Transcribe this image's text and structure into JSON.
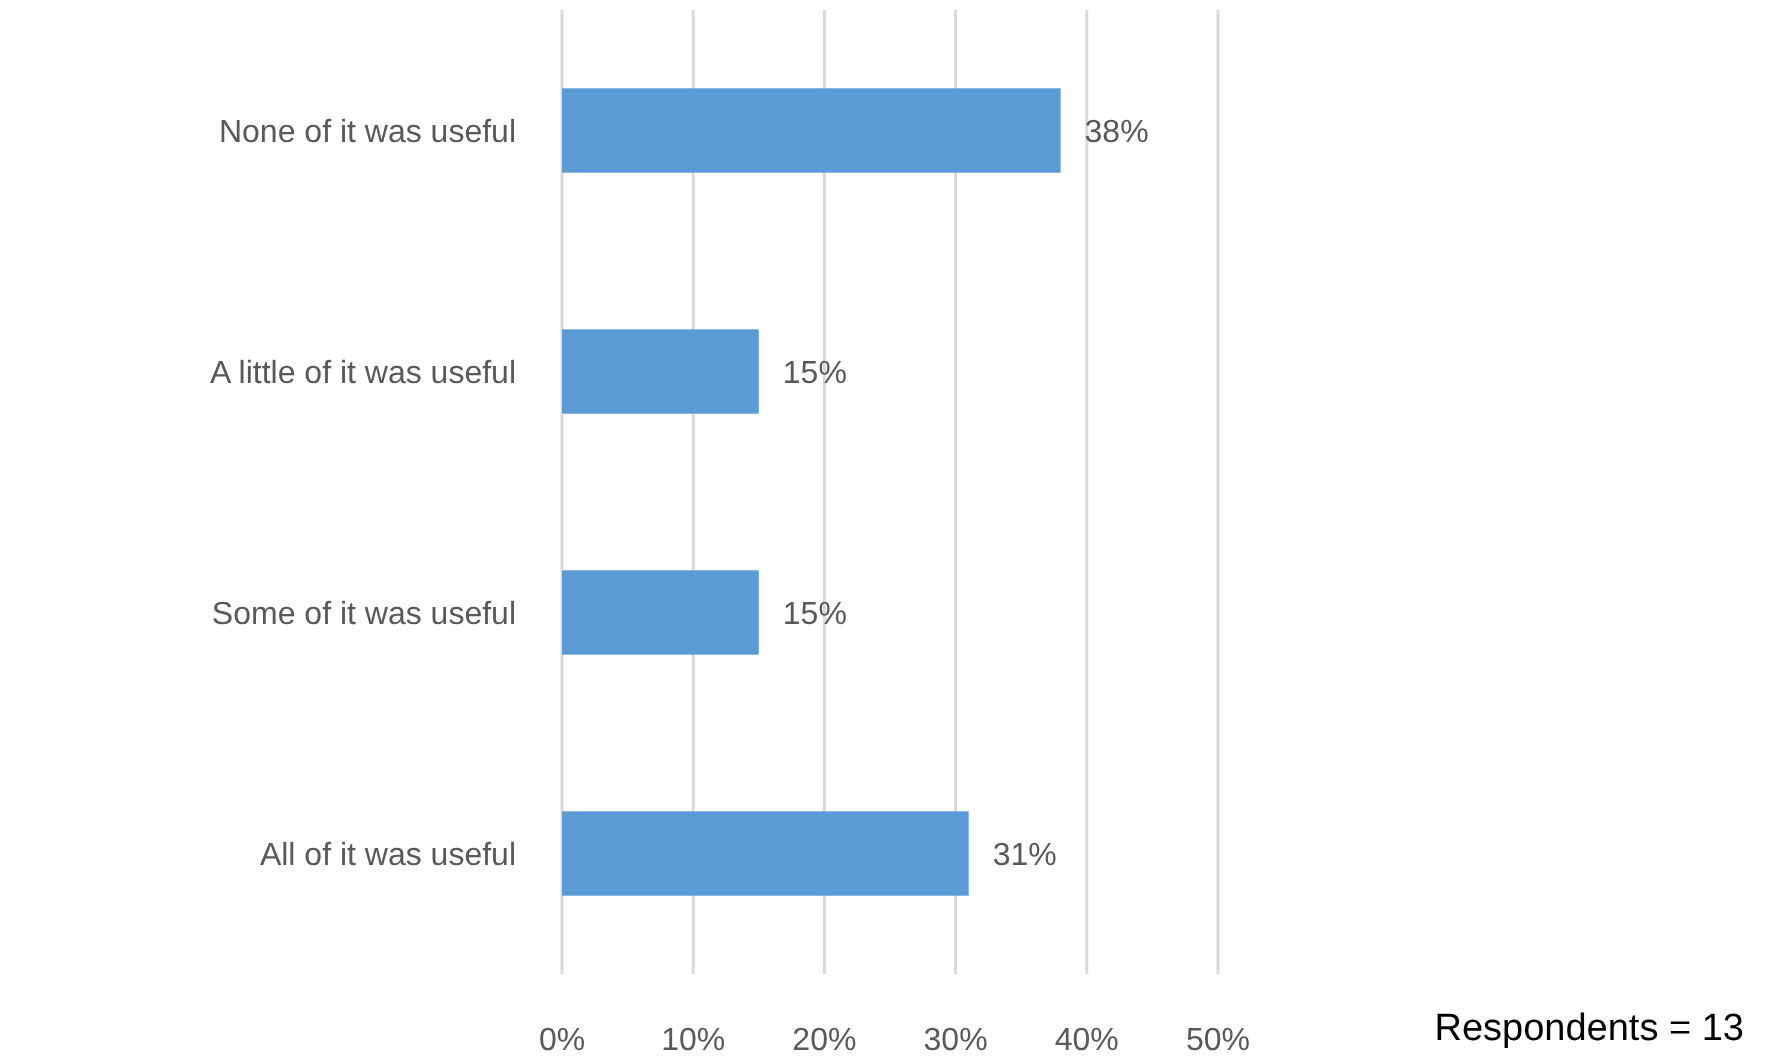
{
  "chart_data": {
    "type": "bar",
    "orientation": "horizontal",
    "categories": [
      "None of it was useful",
      "A little of it was useful",
      "Some of it was useful",
      "All of it was useful"
    ],
    "values": [
      38,
      15,
      15,
      31
    ],
    "value_labels": [
      "38%",
      "15%",
      "15%",
      "31%"
    ],
    "color": "#5b9bd5",
    "xlim": [
      0,
      50
    ],
    "xticks": [
      {
        "value": 0,
        "label": "0%"
      },
      {
        "value": 10,
        "label": "10%"
      },
      {
        "value": 20,
        "label": "20%"
      },
      {
        "value": 30,
        "label": "30%"
      },
      {
        "value": 40,
        "label": "40%"
      },
      {
        "value": 50,
        "label": "50%"
      }
    ],
    "grid": "x",
    "annotations": [
      "Respondents = 13"
    ]
  }
}
